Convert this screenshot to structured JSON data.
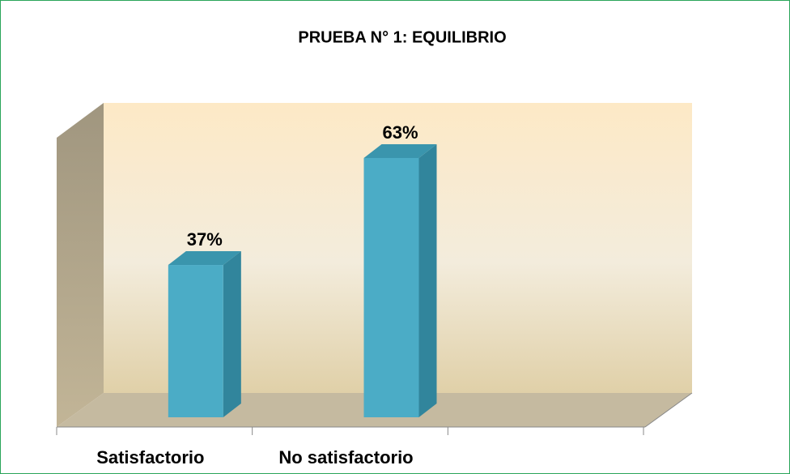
{
  "chart_data": {
    "type": "bar",
    "title": "PRUEBA N° 1:  EQUILIBRIO",
    "categories": [
      "Satisfactorio",
      "No satisfactorio",
      null
    ],
    "values": [
      37,
      63,
      null
    ],
    "value_labels": [
      "37%",
      "63%",
      null
    ],
    "color": "#4bacc6"
  }
}
